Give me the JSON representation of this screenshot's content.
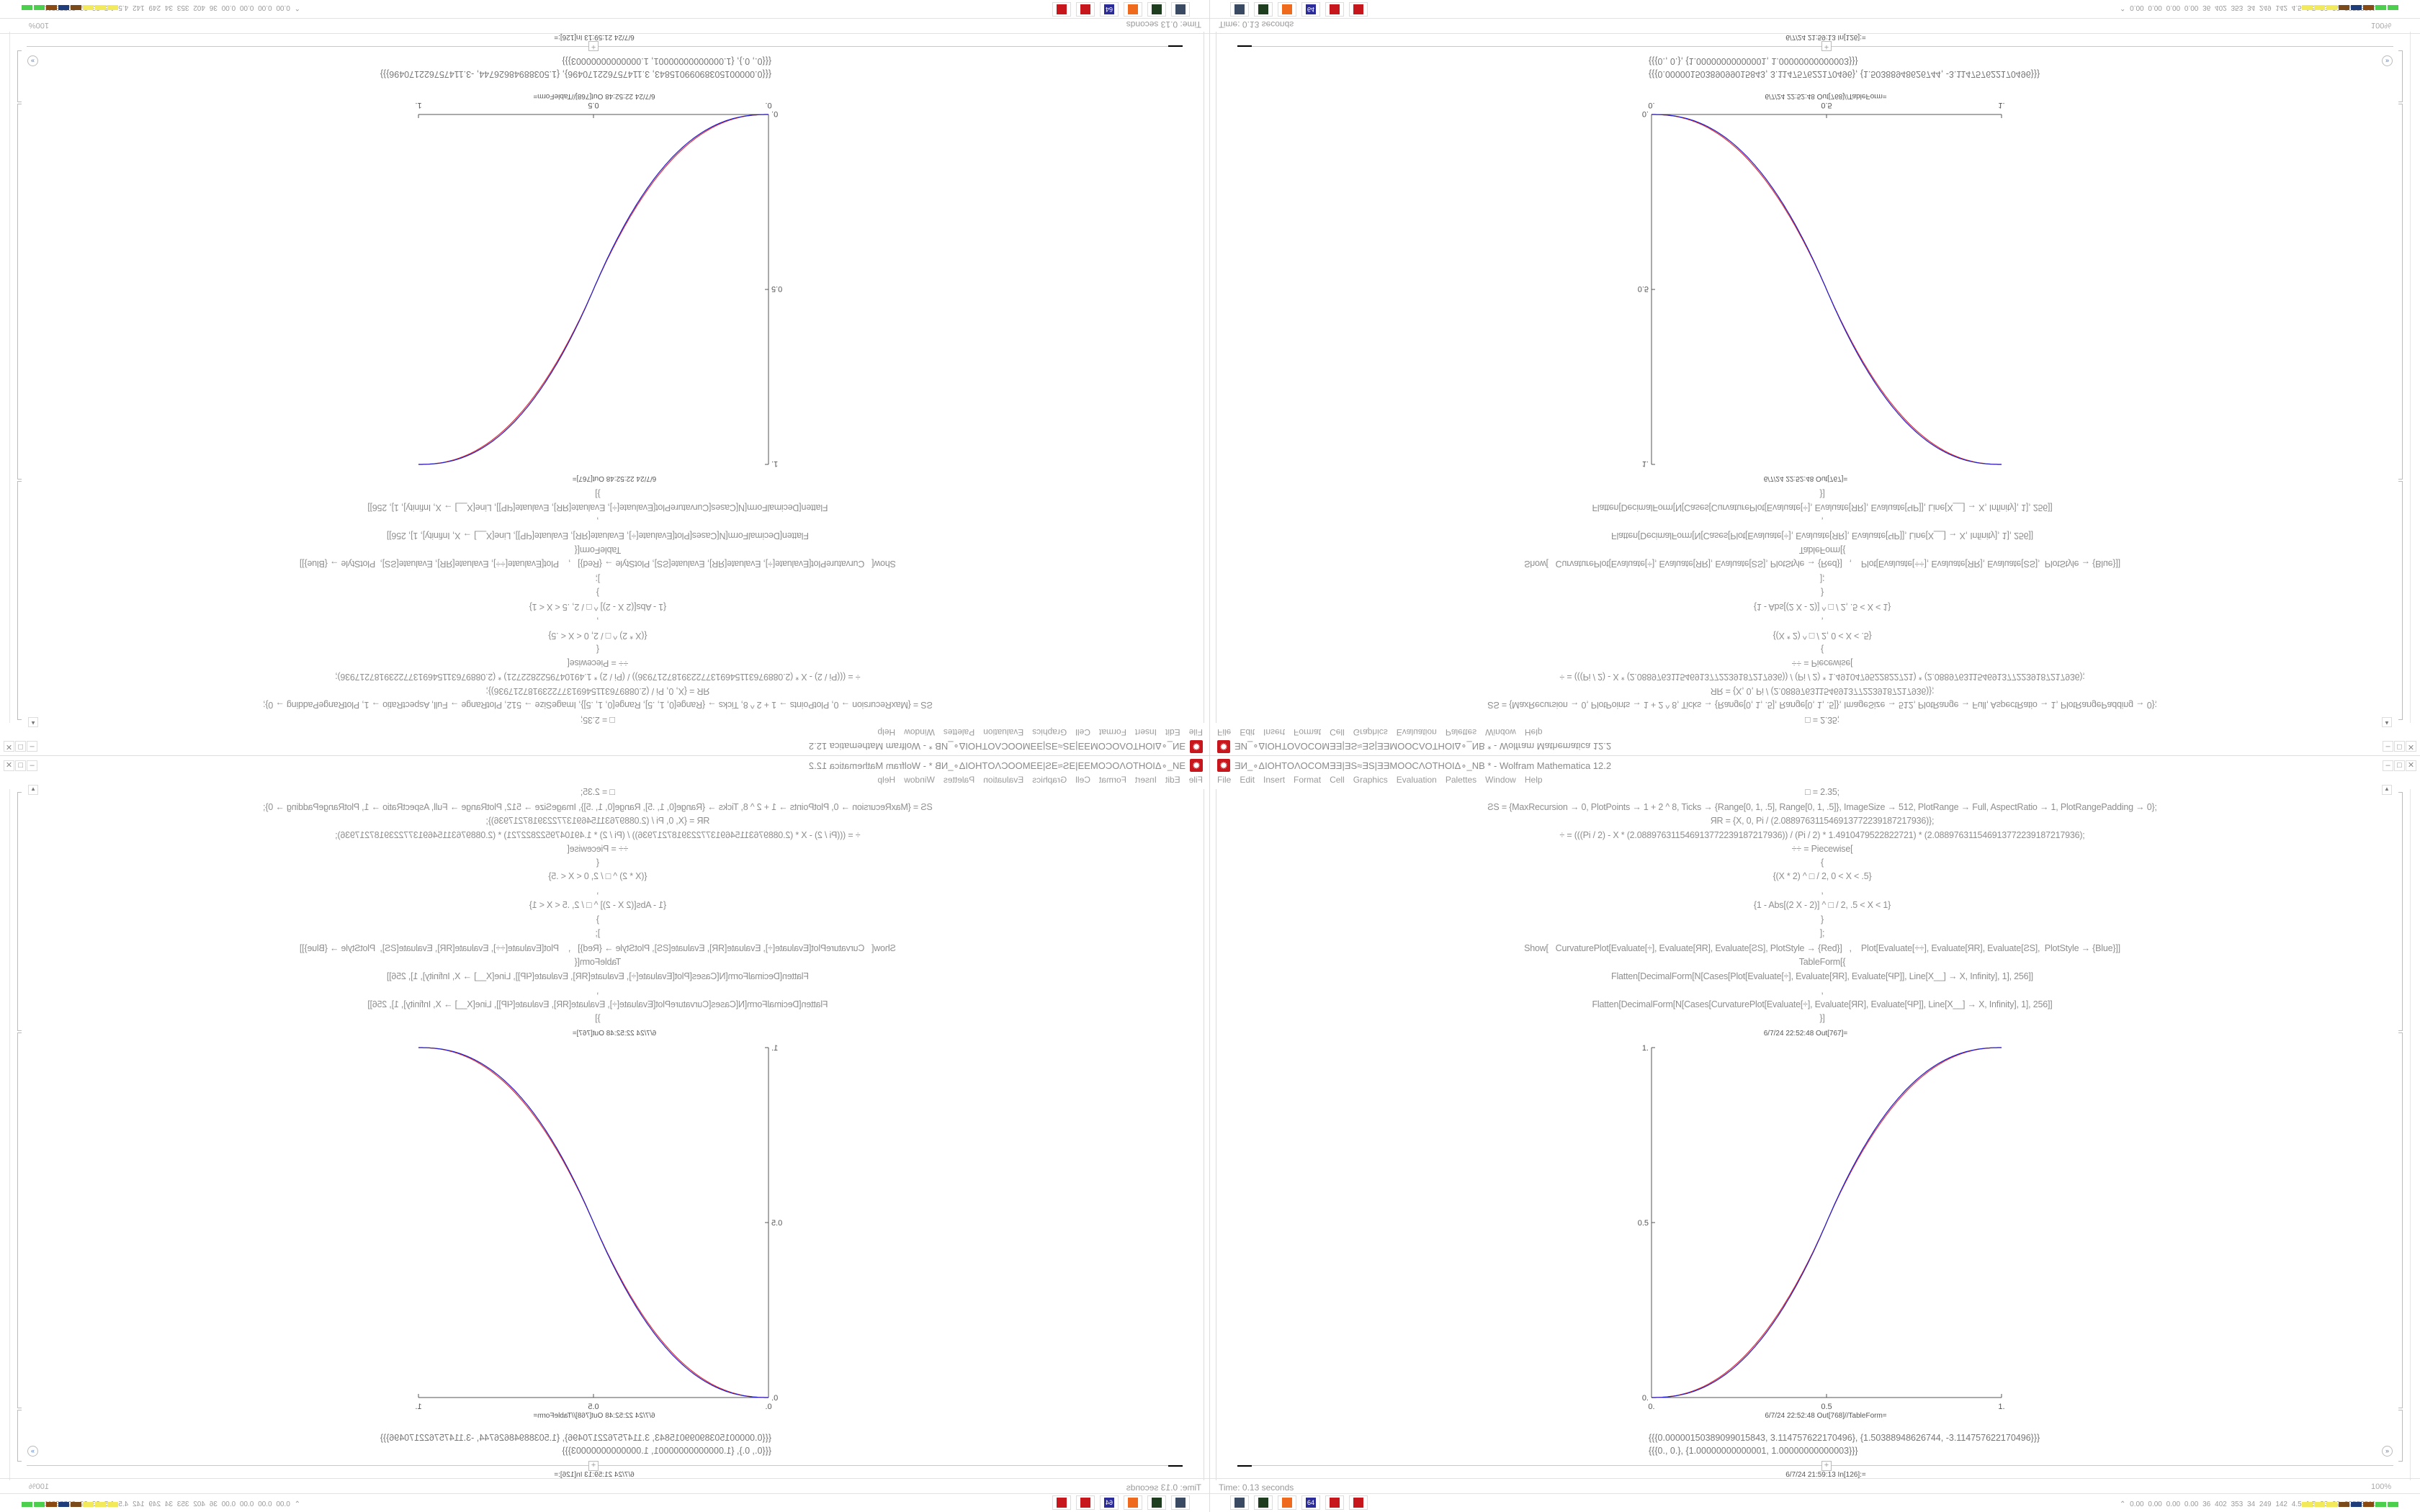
{
  "window": {
    "title": "ƎИ_∘ΔIOHTOΛOCOMƎƎ|ƎS≈ƎS|ƎƎMOOCΛOTHOIΔ∘_NB * - Wolfram Mathematica 12.2",
    "controls": {
      "minimize": "–",
      "maximize": "□",
      "close": "✕"
    }
  },
  "menu": [
    "File",
    "Edit",
    "Insert",
    "Format",
    "Cell",
    "Graphics",
    "Evaluation",
    "Palettes",
    "Window",
    "Help"
  ],
  "code_lines": [
    "□ = 2.35;",
    "ƧS = {MaxRecursion → 0, PlotPoints → 1 + 2 ^ 8, Ticks → {Range[0, 1, .5], Range[0, 1, .5]}, ImageSize → 512, PlotRange → Full, AspectRatio → 1, PlotRangePadding → 0};",
    "ЯR = {X, 0, Pi / (2.08897631154691377223918721793​6)};",
    "÷ = (((Pi / 2) - X * (2.08897631154691377223918721793​6)) / (Pi / 2) * 1.4910479522822721) * (2.08897631154691377223918721793​6);",
    "÷÷ = Piecewise[",
    "{",
    "{(X * 2) ^ □ / 2, 0 < X < .5}",
    ",",
    "{1 - Abs[(2 X - 2)] ^ □ / 2, .5 < X < 1}",
    "}",
    "];",
    "Show[   CurvaturePlot[Evaluate[÷], Evaluate[ЯR], Evaluate[ƧS], PlotStyle → {Red}]   ,    Plot[Evaluate[÷÷], Evaluate[ЯR], Evaluate[ƧS],  PlotStyle → {Blue}]]",
    "TableForm[{",
    "Flatten[DecimalForm[N[Cases[Plot[Evaluate[÷], Evaluate[ЯR], Evaluate[ϤP]], Line[X__] → X, Infinity], 1], 256]]",
    ",",
    "Flatten[DecimalForm[N[Cases[CurvaturePlot[Evaluate[÷], Evaluate[ЯR], Evaluate[ϤP]], Line[X__] → X, Infinity], 1], 256]]",
    "}]"
  ],
  "out1_label": "6/7/24 22:52:48 Out[767]=",
  "plot": {
    "x_ticks": [
      "0.",
      "0.5",
      "1."
    ],
    "y_ticks": [
      "0.",
      "0.5",
      "1."
    ],
    "series": [
      {
        "style": "Red",
        "color": "#e03030"
      },
      {
        "style": "Blue",
        "color": "#2020d0"
      }
    ]
  },
  "out2_label": "6/7/24 22:52:48 Out[768]//TableForm=",
  "results": [
    "{{{0.0000015038909901​5843, 3.114757622170496}, {1.50388948626744, -3.114757622170496}}}",
    "{{{0., 0.}, {1.00000000000001, 1.00000000000003}}}"
  ],
  "in_label": "6/7/24 21:59:13 In[126]:=",
  "add_cell": "+",
  "status": {
    "time": "Time: 0.13 seconds",
    "zoom": "100%"
  },
  "taskbar": [
    {
      "icon": "monitor-icon",
      "color": "#3a4a63"
    },
    {
      "icon": "terminal-icon",
      "color": "#1f3d1f"
    },
    {
      "icon": "firefox-icon",
      "color": "#f06a1d"
    },
    {
      "icon": "floppy-64-icon",
      "color": "#2b2b9a",
      "label": "64"
    },
    {
      "icon": "mathematica-icon",
      "color": "#c8161d"
    },
    {
      "icon": "mathematica-icon",
      "color": "#c8161d"
    }
  ],
  "stats": "⌃ 0.00 0.00 0.00 0.00 36 402 353 34 249 142 4.5 1.5 33 29 29553811",
  "stat_bar_colors": [
    "#f2ea5a",
    "#f2ea5a",
    "#f2ea5a",
    "#7a4a1a",
    "#1f3d7a",
    "#8a4a12",
    "#4ccf4c",
    "#4ccf4c"
  ]
}
